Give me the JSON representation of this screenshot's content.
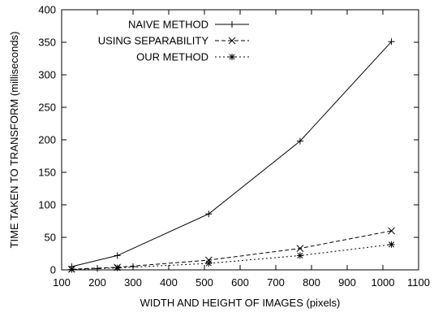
{
  "chart_data": {
    "type": "line",
    "xlabel": "WIDTH AND HEIGHT OF IMAGES (pixels)",
    "ylabel": "TIME TAKEN TO TRANSFORM (milliseconds)",
    "xlim": [
      100,
      1100
    ],
    "ylim": [
      0,
      400
    ],
    "xticks": [
      "100",
      "200",
      "300",
      "400",
      "500",
      "600",
      "700",
      "800",
      "900",
      "1000",
      "1100"
    ],
    "yticks": [
      "0",
      "50",
      "100",
      "150",
      "200",
      "250",
      "300",
      "350",
      "400"
    ],
    "grid": false,
    "legend_position": "top-left",
    "series": [
      {
        "name": "NAIVE METHOD",
        "marker": "plus",
        "dash": "solid",
        "x": [
          128,
          256,
          512,
          768,
          1024
        ],
        "y": [
          5,
          22,
          86,
          198,
          351
        ]
      },
      {
        "name": "USING SEPARABILITY",
        "marker": "cross",
        "dash": "dashed",
        "x": [
          128,
          256,
          512,
          768,
          1024
        ],
        "y": [
          1,
          4,
          15,
          33,
          60
        ]
      },
      {
        "name": "OUR METHOD",
        "marker": "star",
        "dash": "dotted",
        "x": [
          128,
          256,
          512,
          768,
          1024
        ],
        "y": [
          0.5,
          3,
          10,
          22,
          39
        ]
      }
    ],
    "extra_points": [
      {
        "x": 200,
        "y": 2,
        "marker": "plus"
      },
      {
        "x": 300,
        "y": 5,
        "marker": "plus"
      }
    ]
  }
}
